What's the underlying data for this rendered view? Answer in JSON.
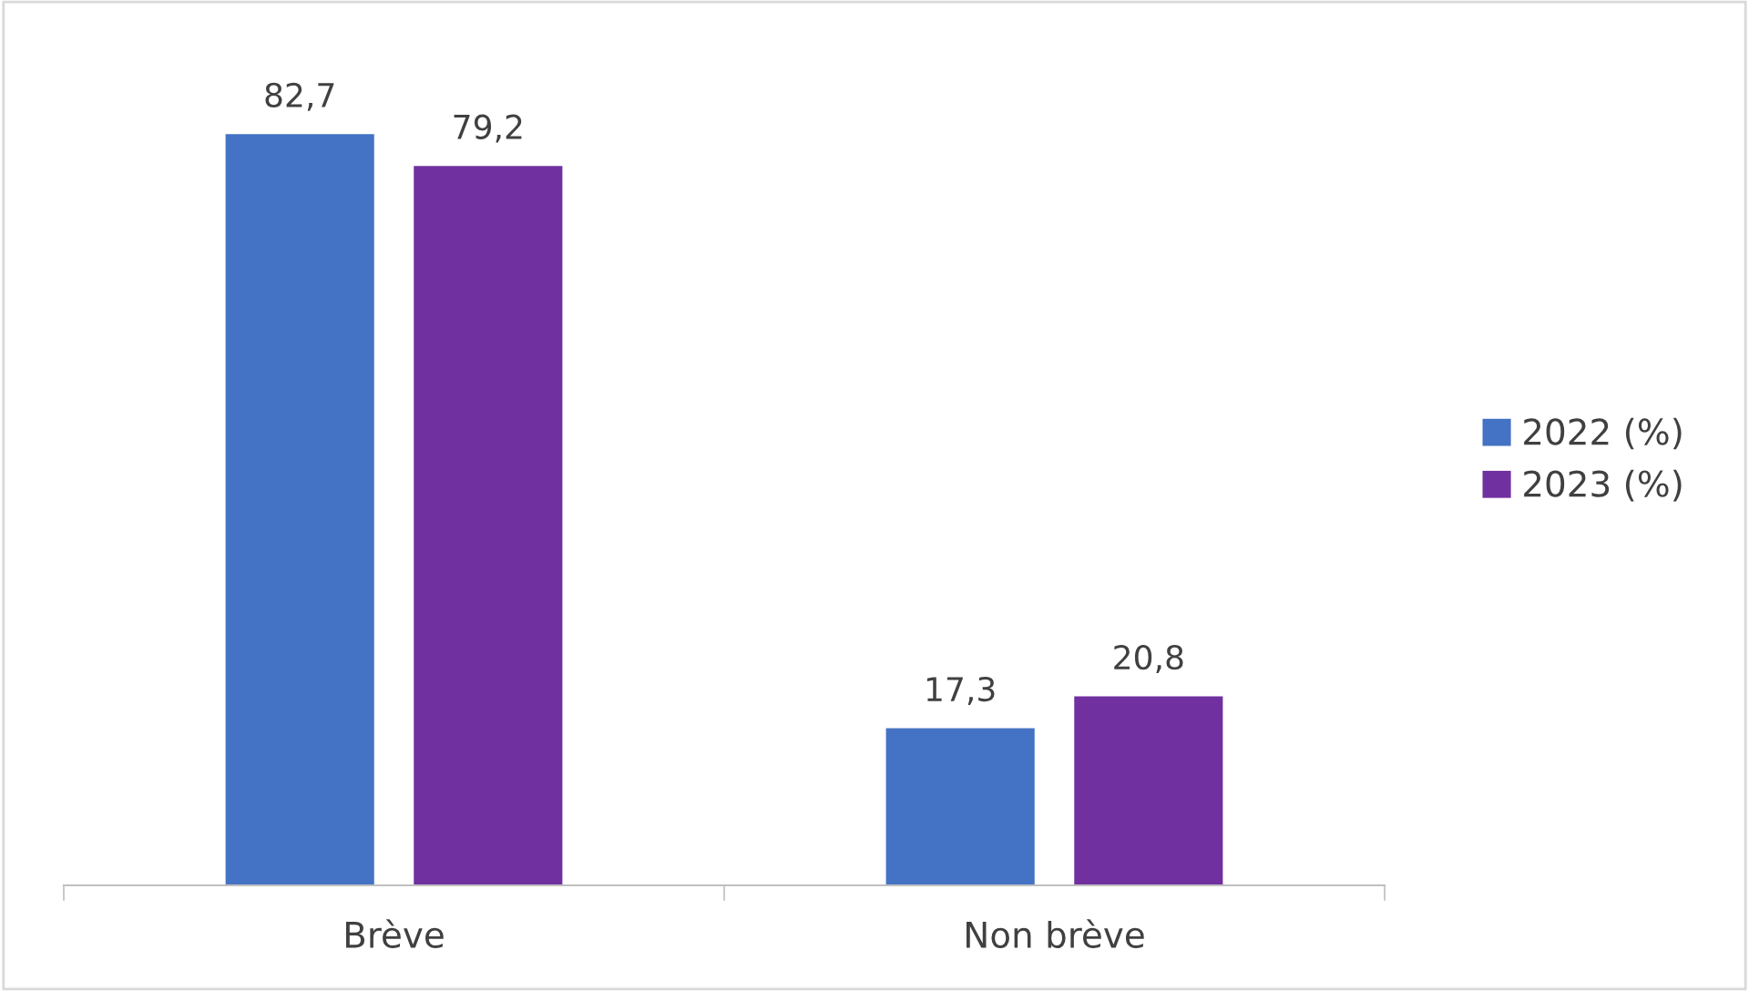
{
  "chart_data": {
    "type": "bar",
    "categories": [
      "Brève",
      "Non brève"
    ],
    "series": [
      {
        "name": "2022 (%)",
        "color": "#4472c4",
        "values": [
          82.7,
          17.3
        ],
        "value_labels": [
          "82,7",
          "17,3"
        ]
      },
      {
        "name": "2023 (%)",
        "color": "#7030a0",
        "values": [
          79.2,
          20.8
        ],
        "value_labels": [
          "79,2",
          "20,8"
        ]
      }
    ],
    "legend": "right",
    "grid": false,
    "tick_labels": "x"
  }
}
